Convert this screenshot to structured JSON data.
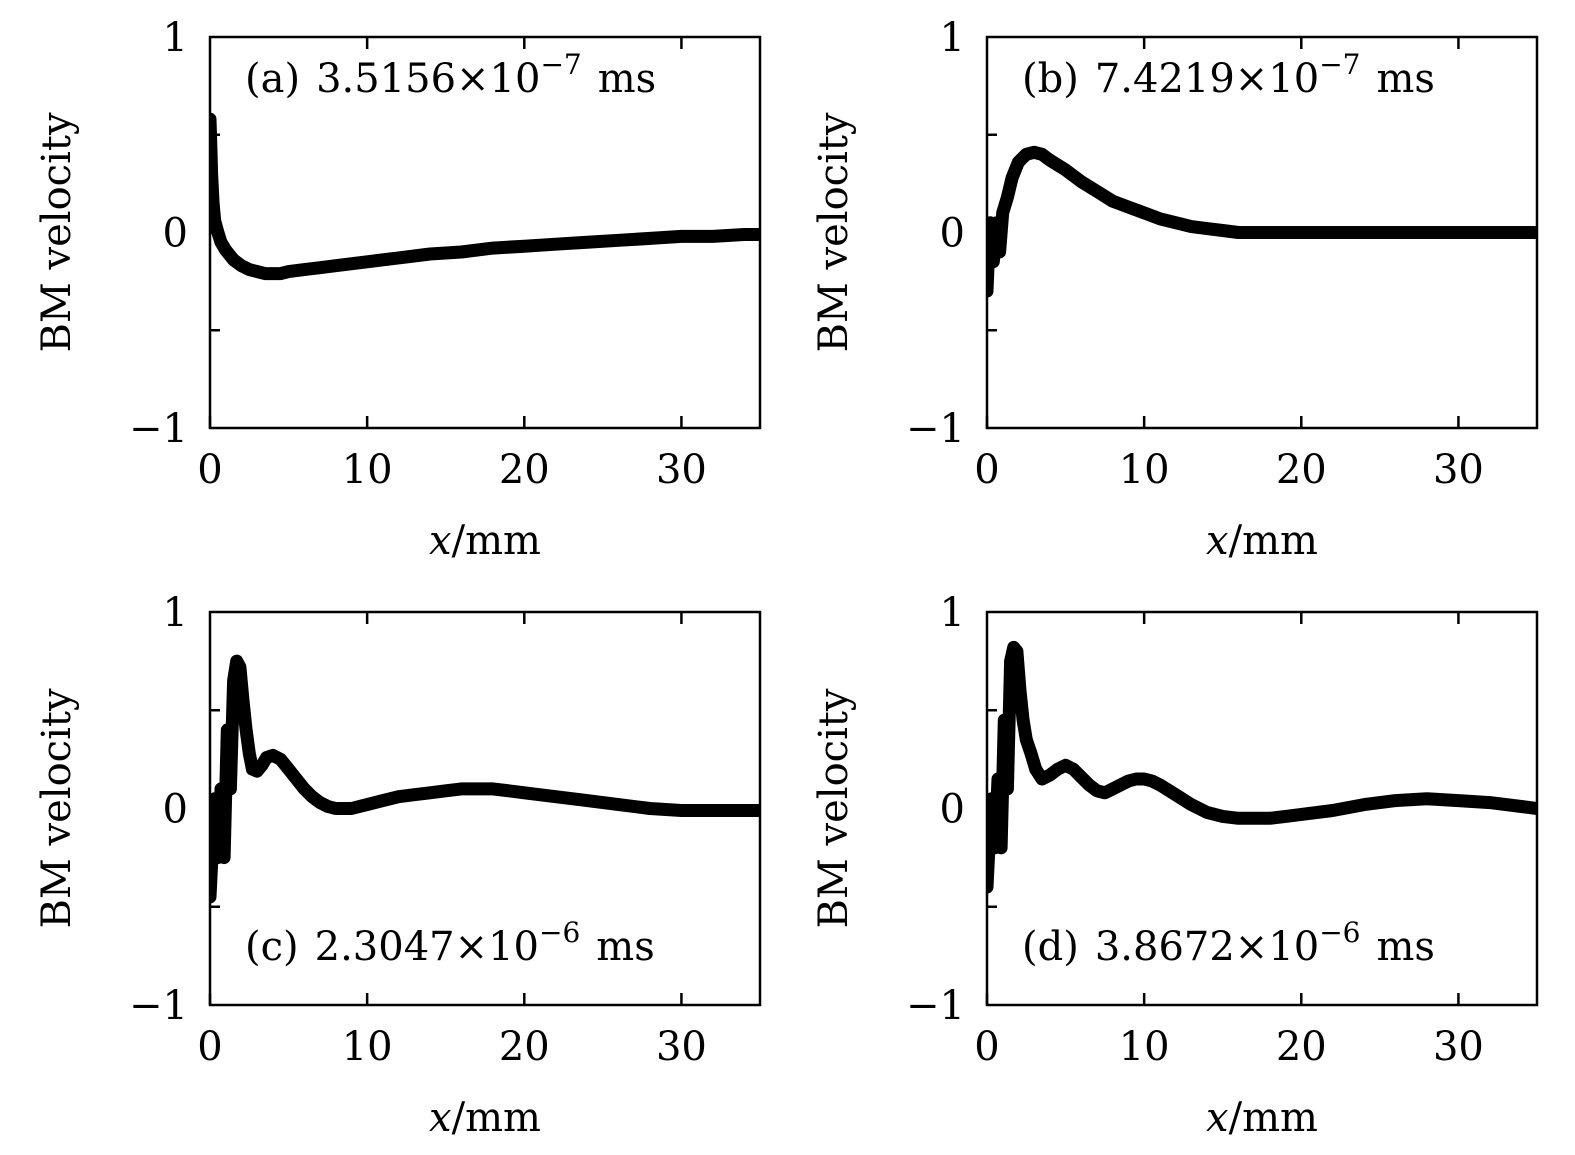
{
  "chart_data": [
    {
      "type": "line",
      "annotation": {
        "label": "(a)",
        "value": "3.5156",
        "times": "×",
        "exp_base": "10",
        "exp": "−7",
        "unit": "ms"
      },
      "xlabel": {
        "var": "x",
        "unit": "/mm"
      },
      "ylabel": "BM velocity",
      "xlim": [
        0,
        35
      ],
      "ylim": [
        -1,
        1
      ],
      "x_ticks": [
        0,
        10,
        20,
        30
      ],
      "y_ticks": [
        -1,
        0,
        1
      ],
      "y_tick_labels": [
        "−1",
        "0",
        "1"
      ],
      "annotation_position": "top",
      "line_color": "#000000",
      "series": [
        {
          "x": [
            0,
            0.05,
            0.1,
            0.2,
            0.3,
            0.5,
            0.7,
            1.0,
            1.5,
            2.0,
            2.5,
            3.0,
            3.5,
            4.0,
            4.5,
            5.0,
            6.0,
            7.0,
            8.0,
            10.0,
            12.0,
            14.0,
            16.0,
            18.0,
            20.0,
            22.0,
            24.0,
            26.0,
            28.0,
            30.0,
            32.0,
            34.0,
            35.0
          ],
          "y": [
            0.58,
            0.45,
            0.3,
            0.15,
            0.06,
            0.0,
            -0.05,
            -0.09,
            -0.14,
            -0.17,
            -0.19,
            -0.2,
            -0.21,
            -0.21,
            -0.21,
            -0.2,
            -0.19,
            -0.18,
            -0.17,
            -0.15,
            -0.13,
            -0.11,
            -0.1,
            -0.08,
            -0.07,
            -0.06,
            -0.05,
            -0.04,
            -0.03,
            -0.02,
            -0.02,
            -0.01,
            -0.01
          ]
        }
      ]
    },
    {
      "type": "line",
      "annotation": {
        "label": "(b)",
        "value": "7.4219",
        "times": "×",
        "exp_base": "10",
        "exp": "−7",
        "unit": "ms"
      },
      "xlabel": {
        "var": "x",
        "unit": "/mm"
      },
      "ylabel": "BM velocity",
      "xlim": [
        0,
        35
      ],
      "ylim": [
        -1,
        1
      ],
      "x_ticks": [
        0,
        10,
        20,
        30
      ],
      "y_ticks": [
        -1,
        0,
        1
      ],
      "y_tick_labels": [
        "−1",
        "0",
        "1"
      ],
      "annotation_position": "top",
      "line_color": "#000000",
      "series": [
        {
          "x": [
            0,
            0.1,
            0.2,
            0.4,
            0.6,
            0.8,
            1.0,
            1.3,
            1.6,
            2.0,
            2.5,
            3.0,
            3.5,
            4.0,
            5.0,
            6.0,
            7.0,
            8.0,
            9.0,
            10.0,
            11.0,
            12.0,
            13.0,
            14.0,
            15.0,
            16.0,
            17.0,
            18.0,
            20.0,
            22.0,
            25.0,
            28.0,
            30.0,
            32.0,
            35.0
          ],
          "y": [
            -0.3,
            -0.1,
            0.05,
            -0.15,
            0.05,
            -0.1,
            0.1,
            0.18,
            0.28,
            0.36,
            0.4,
            0.41,
            0.4,
            0.37,
            0.32,
            0.26,
            0.21,
            0.16,
            0.13,
            0.1,
            0.07,
            0.05,
            0.03,
            0.02,
            0.01,
            0.0,
            0.0,
            0.0,
            0.0,
            0.0,
            0.0,
            0.0,
            0.0,
            0.0,
            0.0
          ]
        }
      ]
    },
    {
      "type": "line",
      "annotation": {
        "label": "(c)",
        "value": "2.3047",
        "times": "×",
        "exp_base": "10",
        "exp": "−6",
        "unit": "ms"
      },
      "xlabel": {
        "var": "x",
        "unit": "/mm"
      },
      "ylabel": "BM velocity",
      "xlim": [
        0,
        35
      ],
      "ylim": [
        -1,
        1
      ],
      "x_ticks": [
        0,
        10,
        20,
        30
      ],
      "y_ticks": [
        -1,
        0,
        1
      ],
      "y_tick_labels": [
        "−1",
        "0",
        "1"
      ],
      "annotation_position": "bottom",
      "line_color": "#000000",
      "series": [
        {
          "x": [
            0,
            0.15,
            0.3,
            0.5,
            0.7,
            0.9,
            1.1,
            1.3,
            1.5,
            1.7,
            1.9,
            2.1,
            2.3,
            2.5,
            2.7,
            3.0,
            3.3,
            3.6,
            4.0,
            4.5,
            5.0,
            5.5,
            6.0,
            6.5,
            7.0,
            7.5,
            8.0,
            8.5,
            9.0,
            10.0,
            11.0,
            12.0,
            13.0,
            14.0,
            15.0,
            16.0,
            17.0,
            18.0,
            19.0,
            20.0,
            22.0,
            24.0,
            26.0,
            28.0,
            30.0,
            32.0,
            34.0,
            35.0
          ],
          "y": [
            -0.45,
            -0.2,
            0.05,
            -0.25,
            0.1,
            -0.25,
            0.4,
            0.1,
            0.65,
            0.75,
            0.72,
            0.55,
            0.4,
            0.28,
            0.2,
            0.19,
            0.22,
            0.26,
            0.27,
            0.25,
            0.2,
            0.15,
            0.1,
            0.06,
            0.03,
            0.01,
            0.0,
            0.0,
            0.0,
            0.02,
            0.04,
            0.06,
            0.07,
            0.08,
            0.09,
            0.1,
            0.1,
            0.1,
            0.09,
            0.08,
            0.06,
            0.04,
            0.02,
            0.0,
            -0.01,
            -0.01,
            -0.01,
            -0.01
          ]
        }
      ]
    },
    {
      "type": "line",
      "annotation": {
        "label": "(d)",
        "value": "3.8672",
        "times": "×",
        "exp_base": "10",
        "exp": "−6",
        "unit": "ms"
      },
      "xlabel": {
        "var": "x",
        "unit": "/mm"
      },
      "ylabel": "BM velocity",
      "xlim": [
        0,
        35
      ],
      "ylim": [
        -1,
        1
      ],
      "x_ticks": [
        0,
        10,
        20,
        30
      ],
      "y_ticks": [
        -1,
        0,
        1
      ],
      "y_tick_labels": [
        "−1",
        "0",
        "1"
      ],
      "annotation_position": "bottom",
      "line_color": "#000000",
      "series": [
        {
          "x": [
            0,
            0.15,
            0.3,
            0.5,
            0.7,
            0.9,
            1.1,
            1.3,
            1.5,
            1.7,
            1.9,
            2.1,
            2.3,
            2.5,
            2.8,
            3.1,
            3.5,
            4.0,
            4.5,
            5.0,
            5.5,
            6.0,
            6.5,
            7.0,
            7.5,
            8.0,
            8.5,
            9.0,
            9.5,
            10.0,
            10.5,
            11.0,
            12.0,
            13.0,
            14.0,
            15.0,
            16.0,
            17.0,
            18.0,
            19.0,
            20.0,
            22.0,
            24.0,
            26.0,
            28.0,
            30.0,
            32.0,
            34.0,
            35.0
          ],
          "y": [
            -0.4,
            -0.15,
            0.05,
            -0.2,
            0.15,
            -0.2,
            0.45,
            0.1,
            0.75,
            0.82,
            0.8,
            0.6,
            0.45,
            0.35,
            0.28,
            0.2,
            0.15,
            0.17,
            0.2,
            0.22,
            0.2,
            0.16,
            0.12,
            0.09,
            0.08,
            0.1,
            0.12,
            0.14,
            0.15,
            0.15,
            0.14,
            0.12,
            0.07,
            0.02,
            -0.02,
            -0.04,
            -0.05,
            -0.05,
            -0.05,
            -0.04,
            -0.03,
            -0.01,
            0.02,
            0.04,
            0.05,
            0.04,
            0.03,
            0.01,
            0.0
          ]
        }
      ]
    }
  ]
}
